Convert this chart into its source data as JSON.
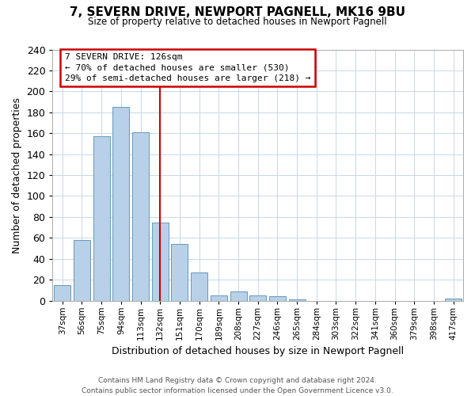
{
  "title": "7, SEVERN DRIVE, NEWPORT PAGNELL, MK16 9BU",
  "subtitle": "Size of property relative to detached houses in Newport Pagnell",
  "xlabel": "Distribution of detached houses by size in Newport Pagnell",
  "ylabel": "Number of detached properties",
  "bar_labels": [
    "37sqm",
    "56sqm",
    "75sqm",
    "94sqm",
    "113sqm",
    "132sqm",
    "151sqm",
    "170sqm",
    "189sqm",
    "208sqm",
    "227sqm",
    "246sqm",
    "265sqm",
    "284sqm",
    "303sqm",
    "322sqm",
    "341sqm",
    "360sqm",
    "379sqm",
    "398sqm",
    "417sqm"
  ],
  "bar_values": [
    15,
    58,
    157,
    185,
    161,
    75,
    54,
    27,
    5,
    9,
    5,
    4,
    1,
    0,
    0,
    0,
    0,
    0,
    0,
    0,
    2
  ],
  "bar_color": "#b8d0e8",
  "bar_edge_color": "#6699bb",
  "vline_x_idx": 5,
  "vline_color": "#cc0000",
  "annotation_title": "7 SEVERN DRIVE: 126sqm",
  "annotation_line1": "← 70% of detached houses are smaller (530)",
  "annotation_line2": "29% of semi-detached houses are larger (218) →",
  "annotation_box_color": "#ffffff",
  "annotation_box_edge_color": "#cc0000",
  "ylim": [
    0,
    240
  ],
  "yticks": [
    0,
    20,
    40,
    60,
    80,
    100,
    120,
    140,
    160,
    180,
    200,
    220,
    240
  ],
  "footer1": "Contains HM Land Registry data © Crown copyright and database right 2024.",
  "footer2": "Contains public sector information licensed under the Open Government Licence v3.0.",
  "background_color": "#ffffff",
  "grid_color": "#c8d8e8"
}
